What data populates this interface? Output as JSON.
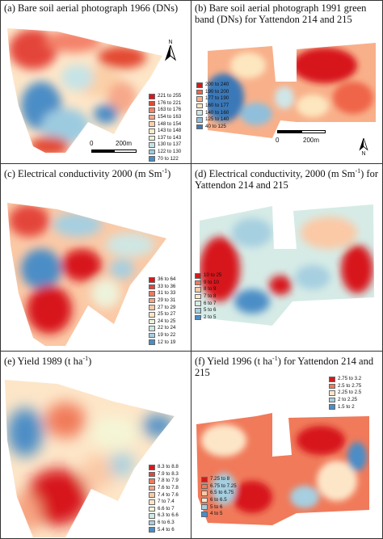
{
  "panels": {
    "a": {
      "title": "(a) Bare soil aerial photograph 1966 (DNs)",
      "legend": [
        {
          "label": "221 to 255",
          "color": "#d7191c"
        },
        {
          "label": "176 to 221",
          "color": "#e34a33"
        },
        {
          "label": "163 to 176",
          "color": "#f4826a"
        },
        {
          "label": "154 to 163",
          "color": "#f7a88a"
        },
        {
          "label": "148 to 154",
          "color": "#fbd0a8"
        },
        {
          "label": "143 to 148",
          "color": "#fdebc8"
        },
        {
          "label": "137 to 143",
          "color": "#e9f2d8"
        },
        {
          "label": "130 to 137",
          "color": "#c6e3e6"
        },
        {
          "label": "122 to 130",
          "color": "#9ccbe0"
        },
        {
          "label": "70 to 122",
          "color": "#4b8dc6"
        }
      ],
      "scale": {
        "zero": "0",
        "dist": "200m"
      },
      "north": "N"
    },
    "b": {
      "title": "(b) Bare soil aerial photograph 1991 green band (DNs) for Yattendon 214 and 215",
      "legend": [
        {
          "label": "200 to 240",
          "color": "#d7191c"
        },
        {
          "label": "190 to 200",
          "color": "#ef6548"
        },
        {
          "label": "177 to 190",
          "color": "#f8b08a"
        },
        {
          "label": "160 to 177",
          "color": "#fde7c0"
        },
        {
          "label": "140 to 160",
          "color": "#cfe6e8"
        },
        {
          "label": "125 to 140",
          "color": "#8fbfdc"
        },
        {
          "label": "40 to 125",
          "color": "#3b78b8"
        }
      ],
      "scale": {
        "zero": "0",
        "dist": "200m"
      },
      "north": "N"
    },
    "c": {
      "title_main": "(c) Electrical conductivity 2000 (m Sm",
      "title_sup": "-1",
      "title_end": ")",
      "legend": [
        {
          "label": "36 to 64",
          "color": "#d7191c"
        },
        {
          "label": "33 to 36",
          "color": "#e4453a"
        },
        {
          "label": "31 to 33",
          "color": "#f07a5a"
        },
        {
          "label": "29 to 31",
          "color": "#f7a582"
        },
        {
          "label": "27 to 29",
          "color": "#fbc9a6"
        },
        {
          "label": "25 to 27",
          "color": "#fde6c8"
        },
        {
          "label": "24 to 25",
          "color": "#eef3dc"
        },
        {
          "label": "22 to 24",
          "color": "#cfe6e3"
        },
        {
          "label": "19 to 22",
          "color": "#a6cfe0"
        },
        {
          "label": "12 to 19",
          "color": "#4b8dc6"
        }
      ]
    },
    "d": {
      "title_main": "(d) Electrical conductivity, 2000 (m Sm",
      "title_sup": "-1",
      "title_end": ") for Yattendon 214 and 215",
      "legend": [
        {
          "label": "10 to 25",
          "color": "#d7191c"
        },
        {
          "label": "9 to 10",
          "color": "#f07a5a"
        },
        {
          "label": "8 to 9",
          "color": "#fbc9a6"
        },
        {
          "label": "7 to 8",
          "color": "#fdebc8"
        },
        {
          "label": "6 to 7",
          "color": "#d6ebe6"
        },
        {
          "label": "5 to 6",
          "color": "#a6cfe0"
        },
        {
          "label": "2 to 5",
          "color": "#4b8dc6"
        }
      ]
    },
    "e": {
      "title_main": "(e) Yield 1989 (t ha",
      "title_sup": "-1",
      "title_end": ")",
      "legend": [
        {
          "label": "8.3 to 8.8",
          "color": "#d7191c"
        },
        {
          "label": "7.9 to 8.3",
          "color": "#e4453a"
        },
        {
          "label": "7.8 to 7.9",
          "color": "#f07a5a"
        },
        {
          "label": "7.6 to 7.8",
          "color": "#f7a582"
        },
        {
          "label": "7.4 to 7.6",
          "color": "#fbc9a6"
        },
        {
          "label": "7 to 7.4",
          "color": "#fde6c8"
        },
        {
          "label": "6.6 to 7",
          "color": "#f4f6d6"
        },
        {
          "label": "6.3 to 6.6",
          "color": "#d0e8e3"
        },
        {
          "label": "6 to 6.3",
          "color": "#a6cfe0"
        },
        {
          "label": "5.4 to 6",
          "color": "#4b8dc6"
        }
      ]
    },
    "f": {
      "title_main": "(f) Yield 1996 (t ha",
      "title_sup": "-1",
      "title_end": ") for Yattendon 214 and 215",
      "legend_top": [
        {
          "label": "2.75 to 3.2",
          "color": "#d7191c"
        },
        {
          "label": "2.5 to 2.75",
          "color": "#f07a5a"
        },
        {
          "label": "2.25 to 2.5",
          "color": "#fde6c8"
        },
        {
          "label": "2 to 2.25",
          "color": "#a6cfe0"
        },
        {
          "label": "1.5 to 2",
          "color": "#4b8dc6"
        }
      ],
      "legend_bottom": [
        {
          "label": "7.25 to 8",
          "color": "#d7191c"
        },
        {
          "label": "6.75 to 7.25",
          "color": "#f07a5a"
        },
        {
          "label": "6.5 to 6.75",
          "color": "#fbc9a6"
        },
        {
          "label": "6 to 6.5",
          "color": "#fde6c8"
        },
        {
          "label": "5 to 6",
          "color": "#a6cfe0"
        },
        {
          "label": "4 to 5",
          "color": "#4b8dc6"
        }
      ]
    }
  }
}
